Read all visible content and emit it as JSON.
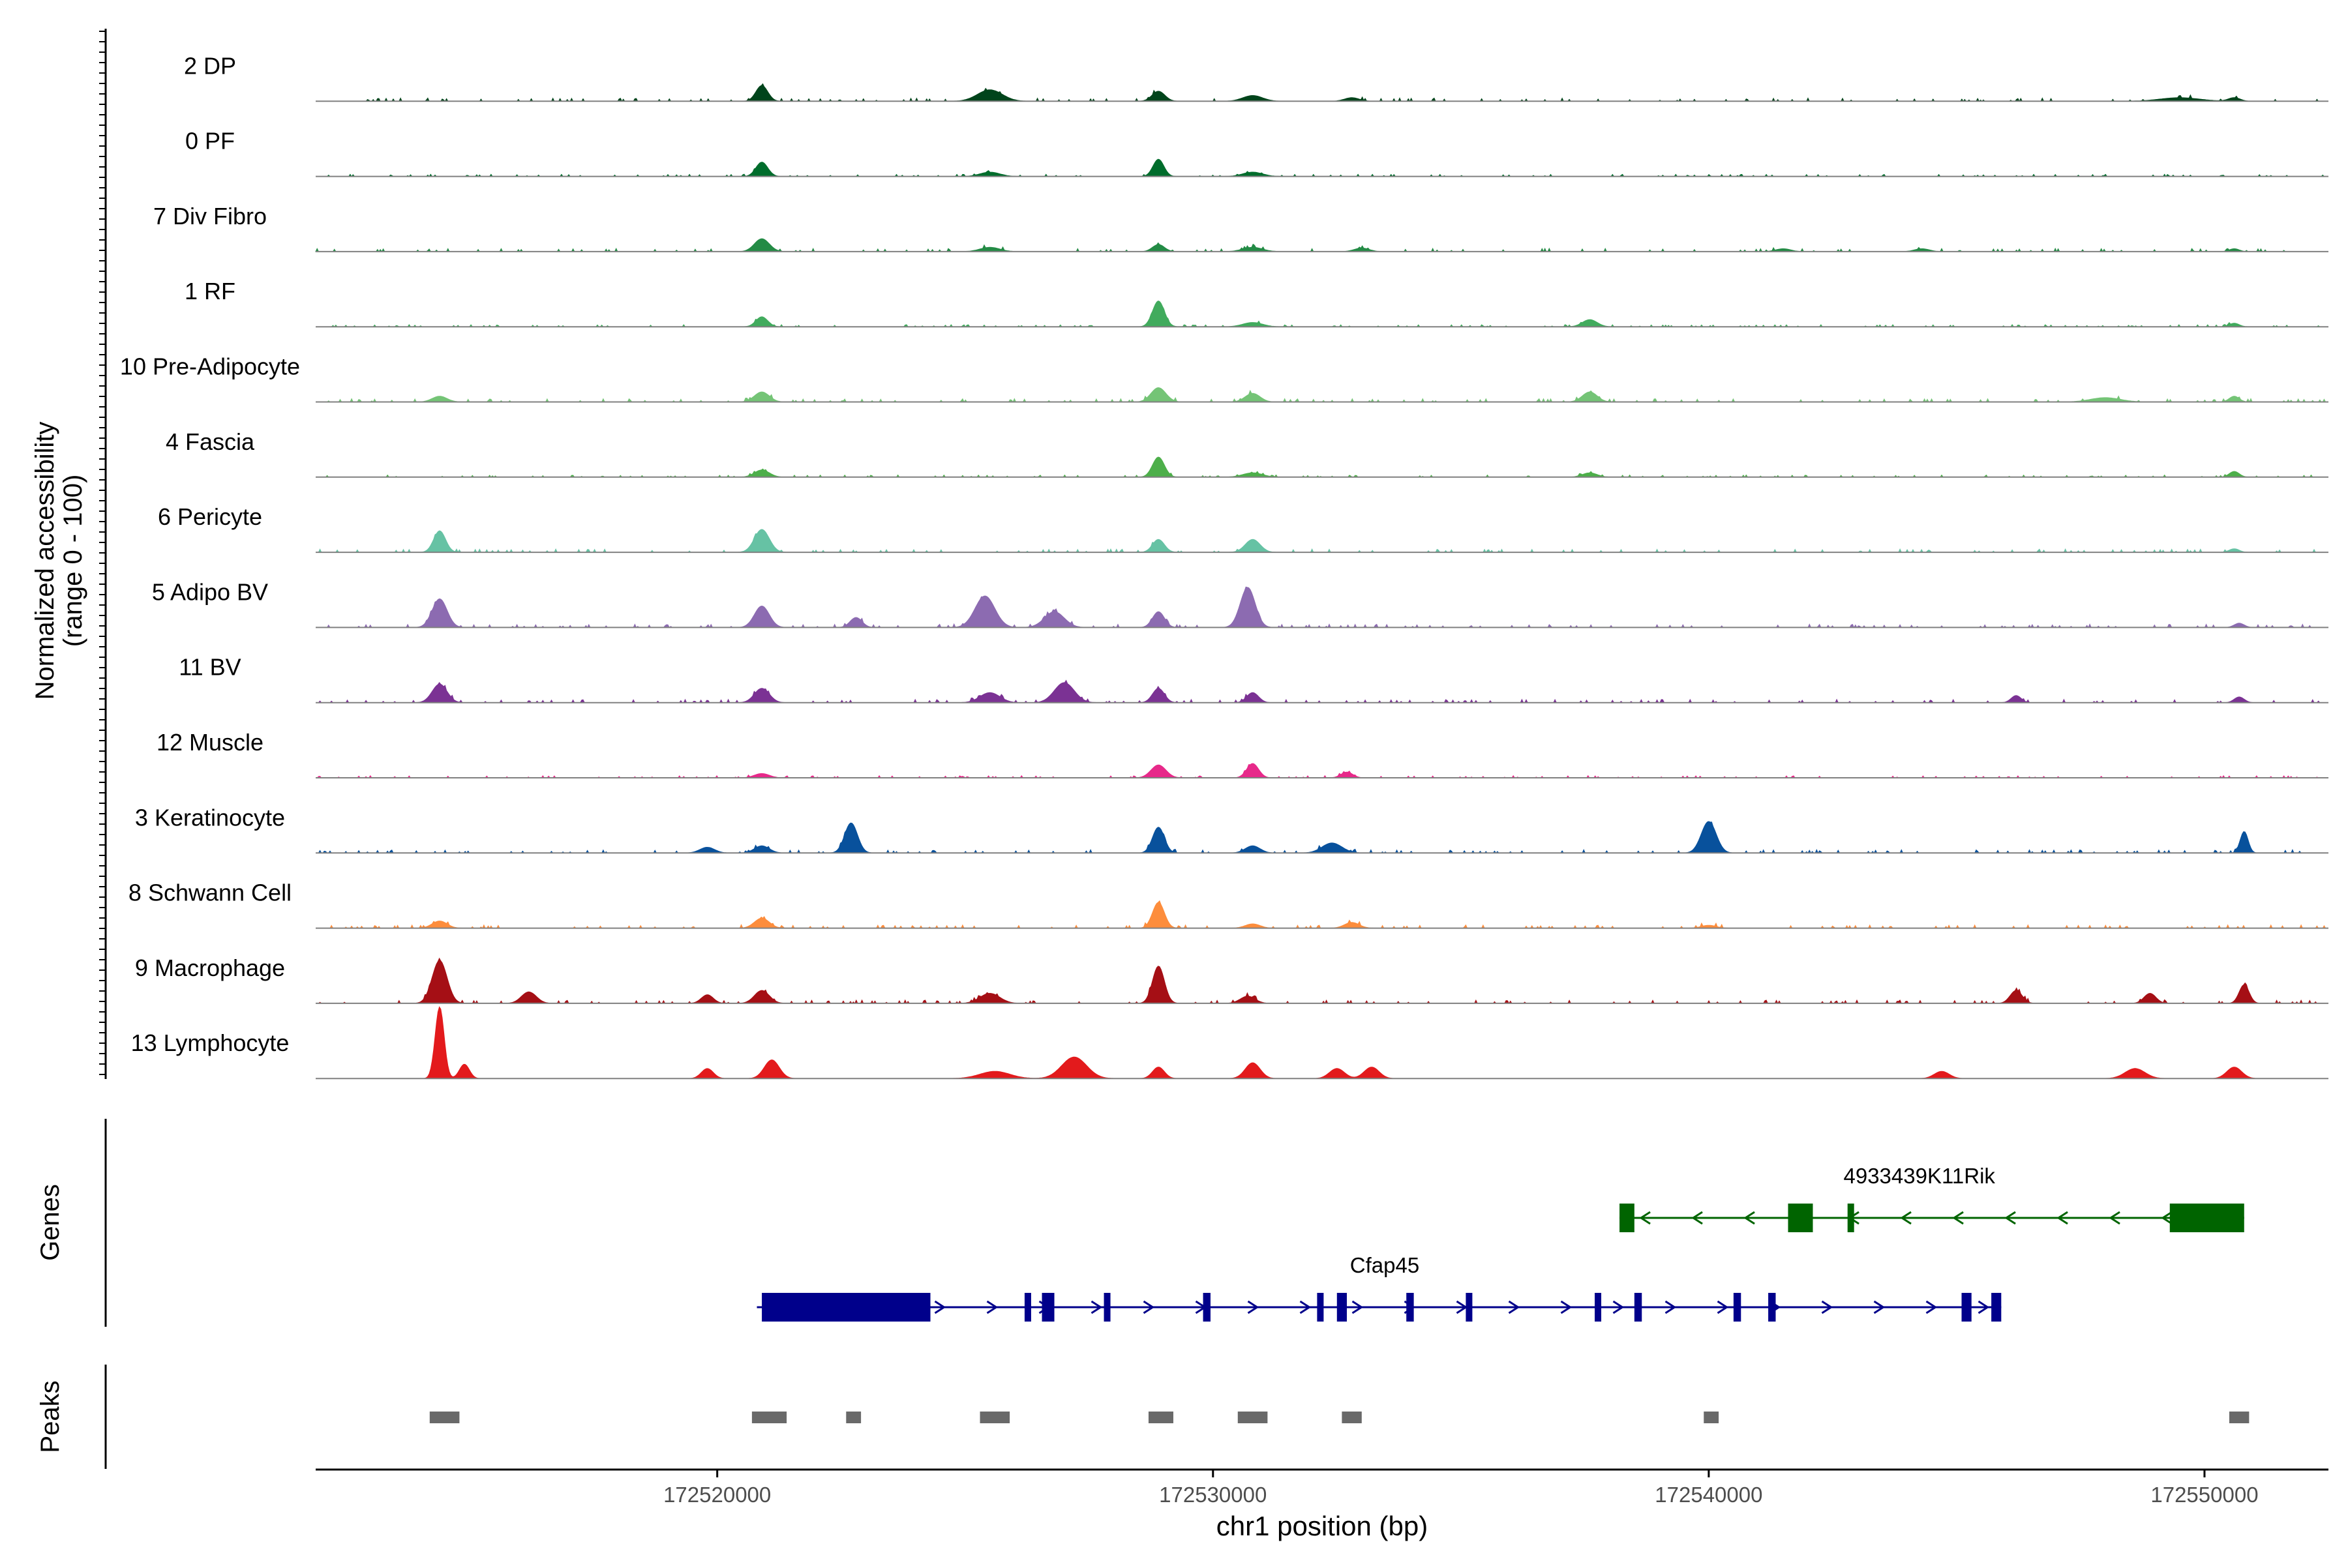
{
  "chart_data": {
    "type": "area",
    "title": "",
    "ylabel": "Normalized accessibility\n(range 0 - 100)",
    "ylim": [
      0,
      100
    ],
    "xlabel": "chr1 position (bp)",
    "xlim": [
      172511900,
      172552500
    ],
    "x_ticks": [
      172520000,
      172530000,
      172540000,
      172550000
    ],
    "x_tick_labels": [
      "172520000",
      "172530000",
      "172540000",
      "172550000"
    ],
    "track_labels": {
      "genes": "Genes",
      "peaks": "Peaks"
    },
    "series": [
      {
        "name": "2 DP",
        "color": "#00441b",
        "peaks": [
          [
            172520900,
            22,
            120
          ],
          [
            172525500,
            16,
            250
          ],
          [
            172528900,
            14,
            130
          ],
          [
            172530800,
            8,
            200
          ],
          [
            172532800,
            5,
            150
          ],
          [
            172549500,
            5,
            400
          ],
          [
            172550600,
            5,
            120
          ]
        ],
        "baseline": 3
      },
      {
        "name": "0 PF",
        "color": "#006d2c",
        "peaks": [
          [
            172520900,
            20,
            120
          ],
          [
            172525500,
            6,
            200
          ],
          [
            172528900,
            24,
            110
          ],
          [
            172530800,
            6,
            200
          ]
        ],
        "baseline": 2
      },
      {
        "name": "7 Div Fibro",
        "color": "#238b45",
        "peaks": [
          [
            172520900,
            18,
            150
          ],
          [
            172525500,
            6,
            200
          ],
          [
            172528900,
            10,
            120
          ],
          [
            172530800,
            6,
            200
          ],
          [
            172533000,
            5,
            150
          ],
          [
            172541500,
            4,
            150
          ],
          [
            172544300,
            4,
            150
          ],
          [
            172550600,
            4,
            100
          ]
        ],
        "baseline": 3
      },
      {
        "name": "1 RF",
        "color": "#41ab5d",
        "peaks": [
          [
            172520900,
            14,
            120
          ],
          [
            172528900,
            36,
            120
          ],
          [
            172530800,
            6,
            200
          ],
          [
            172537600,
            10,
            150
          ],
          [
            172550600,
            5,
            100
          ]
        ],
        "baseline": 2
      },
      {
        "name": "10 Pre-Adipocyte",
        "color": "#74c476",
        "peaks": [
          [
            172514400,
            8,
            150
          ],
          [
            172520900,
            14,
            150
          ],
          [
            172528900,
            20,
            150
          ],
          [
            172530800,
            12,
            150
          ],
          [
            172537600,
            14,
            150
          ],
          [
            172548000,
            6,
            300
          ],
          [
            172550600,
            8,
            100
          ]
        ],
        "baseline": 3
      },
      {
        "name": "4 Fascia",
        "color": "#4daf4a",
        "peaks": [
          [
            172520900,
            10,
            150
          ],
          [
            172528900,
            28,
            120
          ],
          [
            172530800,
            6,
            200
          ],
          [
            172537600,
            6,
            150
          ],
          [
            172550600,
            8,
            100
          ]
        ],
        "baseline": 2
      },
      {
        "name": "6 Pericyte",
        "color": "#66c2a4",
        "peaks": [
          [
            172514400,
            30,
            120
          ],
          [
            172520900,
            32,
            150
          ],
          [
            172528900,
            18,
            120
          ],
          [
            172530800,
            18,
            150
          ],
          [
            172550600,
            5,
            100
          ]
        ],
        "baseline": 3
      },
      {
        "name": "5 Adipo BV",
        "color": "#8c6bb1",
        "peaks": [
          [
            172514400,
            40,
            150
          ],
          [
            172520900,
            30,
            150
          ],
          [
            172522800,
            14,
            120
          ],
          [
            172525400,
            44,
            200
          ],
          [
            172526800,
            22,
            200
          ],
          [
            172528900,
            22,
            120
          ],
          [
            172530700,
            56,
            150
          ],
          [
            172550700,
            6,
            100
          ]
        ],
        "baseline": 3
      },
      {
        "name": "11 BV",
        "color": "#7b3294",
        "peaks": [
          [
            172514400,
            26,
            150
          ],
          [
            172520900,
            20,
            150
          ],
          [
            172525500,
            14,
            200
          ],
          [
            172527000,
            28,
            200
          ],
          [
            172528900,
            20,
            120
          ],
          [
            172530800,
            14,
            120
          ],
          [
            172546200,
            10,
            100
          ],
          [
            172550700,
            8,
            100
          ]
        ],
        "baseline": 3
      },
      {
        "name": "12 Muscle",
        "color": "#e7298a",
        "peaks": [
          [
            172528900,
            18,
            150
          ],
          [
            172530800,
            20,
            120
          ],
          [
            172532700,
            8,
            120
          ],
          [
            172520900,
            6,
            150
          ]
        ],
        "baseline": 2
      },
      {
        "name": "3 Keratinocyte",
        "color": "#08519c",
        "peaks": [
          [
            172519800,
            8,
            150
          ],
          [
            172520900,
            10,
            150
          ],
          [
            172522700,
            42,
            130
          ],
          [
            172528900,
            36,
            120
          ],
          [
            172530800,
            10,
            150
          ],
          [
            172532400,
            14,
            200
          ],
          [
            172540000,
            44,
            150
          ],
          [
            172550800,
            30,
            80
          ]
        ],
        "baseline": 3
      },
      {
        "name": "8 Schwann Cell",
        "color": "#fd8d3c",
        "peaks": [
          [
            172514400,
            10,
            150
          ],
          [
            172520900,
            14,
            150
          ],
          [
            172528900,
            36,
            120
          ],
          [
            172530800,
            6,
            150
          ],
          [
            172532800,
            8,
            150
          ],
          [
            172540000,
            4,
            150
          ]
        ],
        "baseline": 3
      },
      {
        "name": "9 Macrophage",
        "color": "#a50f15",
        "peaks": [
          [
            172514400,
            60,
            150
          ],
          [
            172516200,
            16,
            150
          ],
          [
            172519800,
            12,
            120
          ],
          [
            172520900,
            18,
            150
          ],
          [
            172525500,
            14,
            200
          ],
          [
            172528900,
            52,
            120
          ],
          [
            172530700,
            10,
            150
          ],
          [
            172546200,
            18,
            120
          ],
          [
            172548900,
            14,
            120
          ],
          [
            172550800,
            26,
            100
          ]
        ],
        "baseline": 3
      },
      {
        "name": "13 Lymphocyte",
        "color": "#e31a1c",
        "peaks": [
          [
            172514400,
            100,
            90
          ],
          [
            172514900,
            20,
            100
          ],
          [
            172519800,
            14,
            120
          ],
          [
            172521100,
            26,
            150
          ],
          [
            172525600,
            10,
            300
          ],
          [
            172527200,
            30,
            250
          ],
          [
            172528900,
            16,
            120
          ],
          [
            172530800,
            22,
            150
          ],
          [
            172532500,
            14,
            150
          ],
          [
            172533200,
            16,
            150
          ],
          [
            172544700,
            10,
            150
          ],
          [
            172548600,
            14,
            200
          ],
          [
            172550600,
            16,
            150
          ]
        ],
        "baseline": 0
      }
    ],
    "genes": [
      {
        "name": "4933439K11Rik",
        "strand": "-",
        "color": "#006400",
        "start": 172538200,
        "end": 172550800,
        "exons": [
          [
            172538200,
            172538500,
            "thin"
          ],
          [
            172541600,
            172542100,
            "thick"
          ],
          [
            172542800,
            172542850,
            "thin"
          ],
          [
            172549300,
            172550800,
            "thick"
          ]
        ]
      },
      {
        "name": "Cfap45",
        "strand": "+",
        "color": "#00008b",
        "start": 172520800,
        "end": 172545900,
        "exons": [
          [
            172520900,
            172524300,
            "thick"
          ],
          [
            172526200,
            172526300,
            "thin"
          ],
          [
            172526550,
            172526800,
            "thin"
          ],
          [
            172527800,
            172527900,
            "thin"
          ],
          [
            172529800,
            172529950,
            "thin"
          ],
          [
            172532100,
            172532200,
            "thin"
          ],
          [
            172532500,
            172532700,
            "thin"
          ],
          [
            172533900,
            172534050,
            "thin"
          ],
          [
            172535100,
            172535200,
            "thin"
          ],
          [
            172537700,
            172537800,
            "thin"
          ],
          [
            172538500,
            172538650,
            "thin"
          ],
          [
            172540500,
            172540650,
            "thin"
          ],
          [
            172541200,
            172541350,
            "thin"
          ],
          [
            172545100,
            172545300,
            "thin"
          ],
          [
            172545700,
            172545900,
            "thin"
          ]
        ]
      }
    ],
    "peaks": [
      [
        172514200,
        172514800
      ],
      [
        172520700,
        172521400
      ],
      [
        172522600,
        172522900
      ],
      [
        172525300,
        172525900
      ],
      [
        172528700,
        172529200
      ],
      [
        172530500,
        172531100
      ],
      [
        172532600,
        172533000
      ],
      [
        172539900,
        172540200
      ],
      [
        172550500,
        172550900
      ]
    ]
  }
}
